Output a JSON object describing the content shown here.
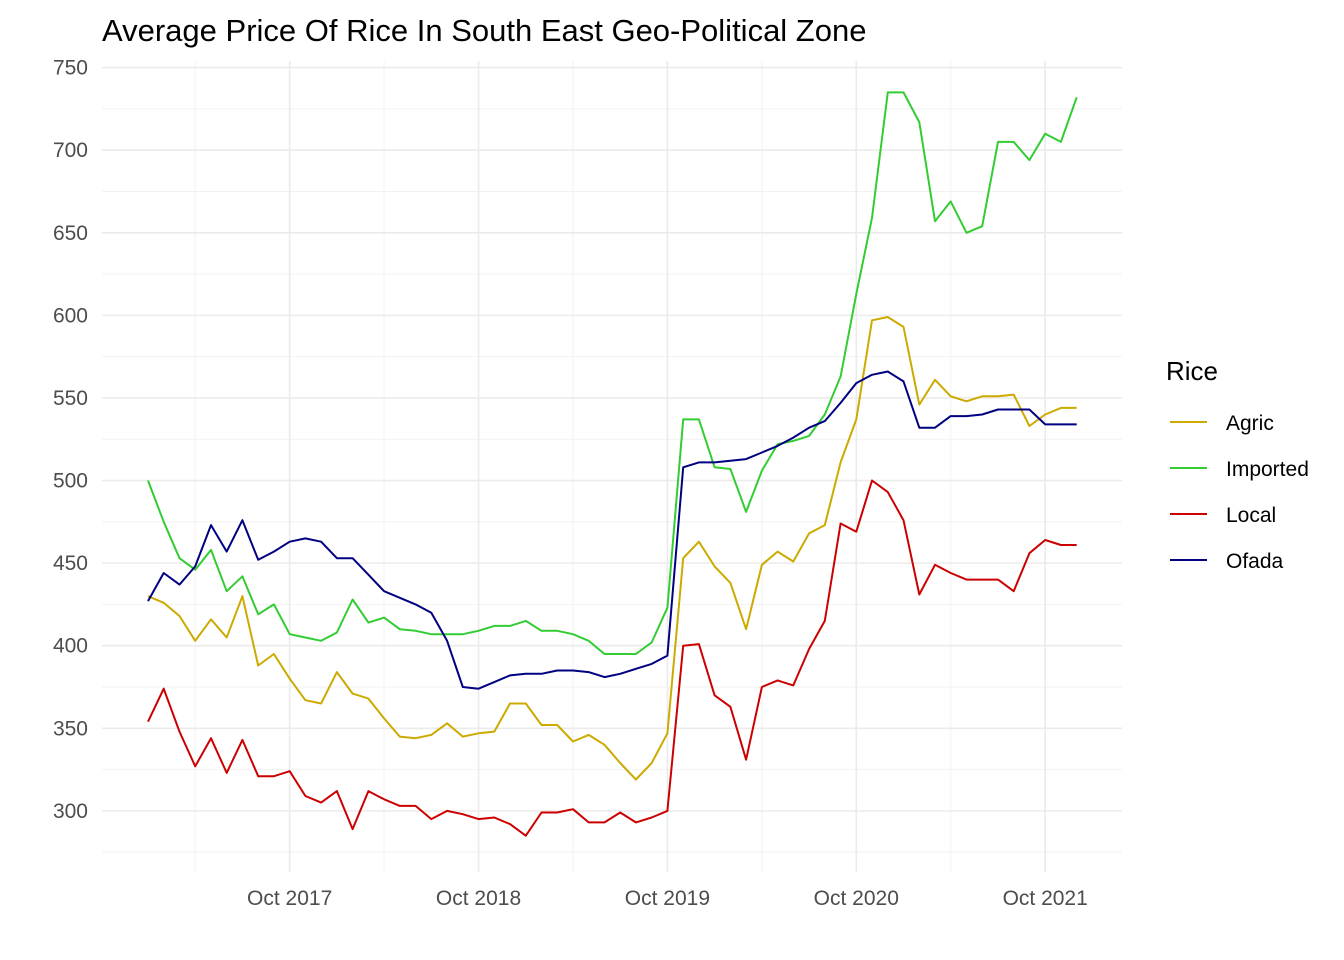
{
  "chart_data": {
    "type": "line",
    "title": "Average Price Of Rice In South East Geo-Political Zone",
    "xlabel": "",
    "ylabel": "",
    "x_start": "2017-01",
    "x_tick_labels": [
      "Oct 2017",
      "Oct 2018",
      "Oct 2019",
      "Oct 2020",
      "Oct 2021"
    ],
    "x_tick_months": [
      "2017-10",
      "2018-10",
      "2019-10",
      "2020-10",
      "2021-10"
    ],
    "ylim": [
      263,
      754
    ],
    "y_ticks": [
      300,
      350,
      400,
      450,
      500,
      550,
      600,
      650,
      700,
      750
    ],
    "grid": true,
    "legend": {
      "title": "Rice",
      "position": "right"
    },
    "series": [
      {
        "name": "Agric",
        "color": "#CCAA00",
        "values": [
          430,
          426,
          418,
          403,
          416,
          405,
          430,
          388,
          395,
          380,
          367,
          365,
          384,
          371,
          368,
          356,
          345,
          344,
          346,
          353,
          345,
          347,
          348,
          365,
          365,
          352,
          352,
          342,
          346,
          340,
          329,
          319,
          329,
          347,
          453,
          463,
          448,
          438,
          410,
          449,
          457,
          451,
          468,
          473,
          511,
          537,
          597,
          599,
          593,
          546,
          561,
          551,
          548,
          551,
          551,
          552,
          533,
          540,
          544,
          544
        ]
      },
      {
        "name": "Imported",
        "color": "#33CC33",
        "values": [
          500,
          475,
          453,
          446,
          458,
          433,
          442,
          419,
          425,
          407,
          405,
          403,
          408,
          428,
          414,
          417,
          410,
          409,
          407,
          407,
          407,
          409,
          412,
          412,
          415,
          409,
          409,
          407,
          403,
          395,
          395,
          395,
          402,
          423,
          537,
          537,
          508,
          507,
          481,
          506,
          522,
          524,
          527,
          540,
          563,
          613,
          659,
          735,
          735,
          717,
          657,
          669,
          650,
          654,
          705,
          705,
          694,
          710,
          705,
          732
        ]
      },
      {
        "name": "Local",
        "color": "#CC0000",
        "values": [
          354,
          374,
          348,
          327,
          344,
          323,
          343,
          321,
          321,
          324,
          309,
          305,
          312,
          289,
          312,
          307,
          303,
          303,
          295,
          300,
          298,
          295,
          296,
          292,
          285,
          299,
          299,
          301,
          293,
          293,
          299,
          293,
          296,
          300,
          400,
          401,
          370,
          363,
          331,
          375,
          379,
          376,
          398,
          415,
          474,
          469,
          500,
          493,
          476,
          431,
          449,
          444,
          440,
          440,
          440,
          433,
          456,
          464,
          461,
          461
        ]
      },
      {
        "name": "Ofada",
        "color": "#000080",
        "values": [
          427,
          444,
          437,
          448,
          473,
          457,
          476,
          452,
          457,
          463,
          465,
          463,
          453,
          453,
          443,
          433,
          429,
          425,
          420,
          403,
          375,
          374,
          378,
          382,
          383,
          383,
          385,
          385,
          384,
          381,
          383,
          386,
          389,
          394,
          508,
          511,
          511,
          512,
          513,
          517,
          521,
          526,
          532,
          536,
          547,
          559,
          564,
          566,
          560,
          532,
          532,
          539,
          539,
          540,
          543,
          543,
          543,
          534,
          534,
          534
        ]
      }
    ]
  }
}
